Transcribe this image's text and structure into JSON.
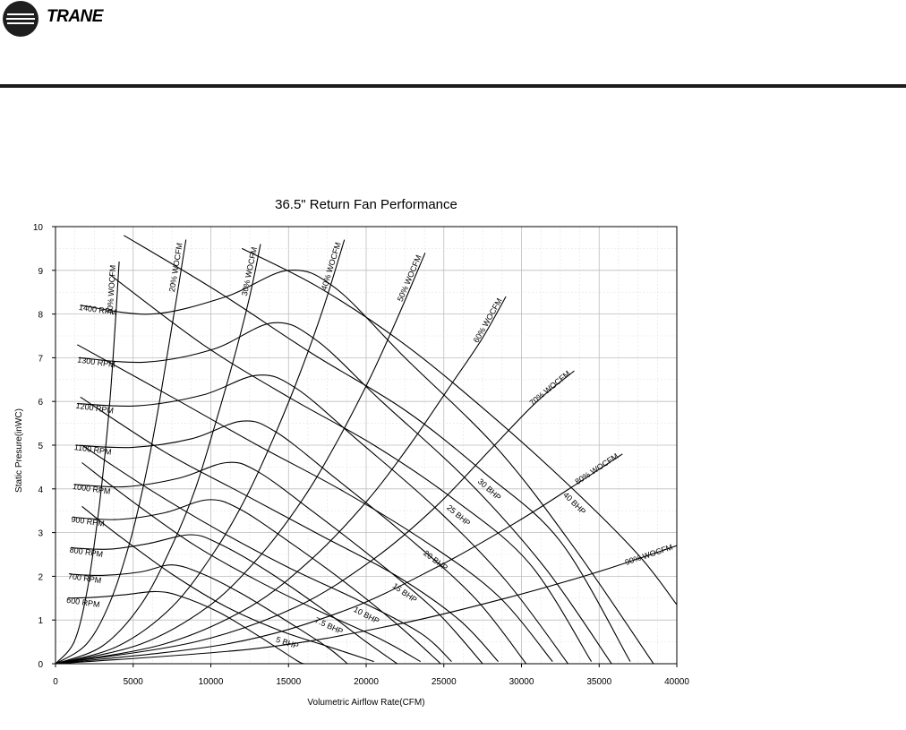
{
  "brand": {
    "name": "TRANE",
    "logo_icon": "trane-logo-icon"
  },
  "chart_data": {
    "type": "line",
    "title": "36.5\" Return Fan Performance",
    "xlabel": "Volumetric Airflow Rate(CFM)",
    "ylabel": "Static Presure(inWC)",
    "xlim": [
      0,
      40000
    ],
    "ylim": [
      0,
      10
    ],
    "xticks": [
      "0",
      "5000",
      "10000",
      "15000",
      "20000",
      "25000",
      "30000",
      "35000",
      "40000"
    ],
    "yticks": [
      "0",
      "1",
      "2",
      "3",
      "4",
      "5",
      "6",
      "7",
      "8",
      "9",
      "10"
    ],
    "grid": true,
    "rpm_curves": [
      {
        "name": "600 RPM",
        "points": [
          [
            800,
            1.5
          ],
          [
            2500,
            1.52
          ],
          [
            4500,
            1.58
          ],
          [
            6500,
            1.65
          ],
          [
            8000,
            1.55
          ],
          [
            10500,
            1.18
          ],
          [
            13000,
            0.65
          ],
          [
            15500,
            0.08
          ],
          [
            16000,
            0
          ]
        ]
      },
      {
        "name": "700 RPM",
        "points": [
          [
            900,
            2.05
          ],
          [
            3000,
            2.02
          ],
          [
            5500,
            2.1
          ],
          [
            7500,
            2.26
          ],
          [
            9500,
            2.05
          ],
          [
            12000,
            1.6
          ],
          [
            15000,
            0.95
          ],
          [
            17500,
            0.38
          ],
          [
            18800,
            0
          ]
        ]
      },
      {
        "name": "800 RPM",
        "points": [
          [
            1000,
            2.65
          ],
          [
            3500,
            2.62
          ],
          [
            6000,
            2.75
          ],
          [
            8700,
            2.95
          ],
          [
            10500,
            2.75
          ],
          [
            13500,
            2.15
          ],
          [
            17000,
            1.3
          ],
          [
            20000,
            0.5
          ],
          [
            22000,
            0
          ]
        ]
      },
      {
        "name": "900 RPM",
        "points": [
          [
            1100,
            3.35
          ],
          [
            4000,
            3.3
          ],
          [
            7000,
            3.45
          ],
          [
            9800,
            3.75
          ],
          [
            11800,
            3.55
          ],
          [
            15000,
            2.8
          ],
          [
            18500,
            1.9
          ],
          [
            22000,
            0.9
          ],
          [
            24800,
            0
          ]
        ]
      },
      {
        "name": "1000 RPM",
        "points": [
          [
            1200,
            4.1
          ],
          [
            4500,
            4.05
          ],
          [
            8000,
            4.25
          ],
          [
            11000,
            4.6
          ],
          [
            13000,
            4.4
          ],
          [
            16500,
            3.5
          ],
          [
            20500,
            2.4
          ],
          [
            24500,
            1.2
          ],
          [
            27500,
            0
          ]
        ]
      },
      {
        "name": "1100 RPM",
        "points": [
          [
            1300,
            5.0
          ],
          [
            5000,
            4.95
          ],
          [
            8800,
            5.15
          ],
          [
            12000,
            5.55
          ],
          [
            14200,
            5.3
          ],
          [
            18000,
            4.25
          ],
          [
            22500,
            2.95
          ],
          [
            27000,
            1.5
          ],
          [
            30300,
            0
          ]
        ]
      },
      {
        "name": "1200 RPM",
        "points": [
          [
            1400,
            5.95
          ],
          [
            5300,
            5.9
          ],
          [
            9500,
            6.15
          ],
          [
            13000,
            6.6
          ],
          [
            15500,
            6.3
          ],
          [
            19500,
            5.1
          ],
          [
            24500,
            3.55
          ],
          [
            29000,
            1.9
          ],
          [
            33000,
            0
          ]
        ]
      },
      {
        "name": "1300 RPM",
        "points": [
          [
            1500,
            7.0
          ],
          [
            5800,
            6.9
          ],
          [
            10200,
            7.2
          ],
          [
            14000,
            7.8
          ],
          [
            16800,
            7.4
          ],
          [
            21000,
            6.0
          ],
          [
            26500,
            4.2
          ],
          [
            31500,
            2.2
          ],
          [
            35800,
            0
          ]
        ]
      },
      {
        "name": "1400 RPM",
        "points": [
          [
            1600,
            8.2
          ],
          [
            6200,
            8.0
          ],
          [
            11000,
            8.4
          ],
          [
            15000,
            9.0
          ],
          [
            18000,
            8.6
          ],
          [
            22500,
            7.0
          ],
          [
            28500,
            4.9
          ],
          [
            33500,
            2.6
          ],
          [
            38500,
            0
          ]
        ]
      }
    ],
    "system_curves": [
      {
        "name": "10% WOCFM",
        "points": [
          [
            0,
            0
          ],
          [
            1200,
            0.5
          ],
          [
            2000,
            1.6
          ],
          [
            2600,
            3.0
          ],
          [
            3100,
            4.5
          ],
          [
            3500,
            6.0
          ],
          [
            3800,
            7.5
          ],
          [
            4100,
            9.2
          ]
        ]
      },
      {
        "name": "20% WOCFM",
        "points": [
          [
            0,
            0
          ],
          [
            2000,
            0.45
          ],
          [
            3500,
            1.4
          ],
          [
            4800,
            2.8
          ],
          [
            5800,
            4.3
          ],
          [
            6600,
            5.8
          ],
          [
            7300,
            7.3
          ],
          [
            7900,
            8.6
          ],
          [
            8400,
            9.7
          ]
        ]
      },
      {
        "name": "30% WOCFM",
        "points": [
          [
            0,
            0
          ],
          [
            3000,
            0.4
          ],
          [
            5500,
            1.35
          ],
          [
            7500,
            2.7
          ],
          [
            9000,
            4.0
          ],
          [
            10300,
            5.5
          ],
          [
            11500,
            7.0
          ],
          [
            12500,
            8.4
          ],
          [
            13200,
            9.6
          ]
        ]
      },
      {
        "name": "40% WOCFM",
        "points": [
          [
            0,
            0
          ],
          [
            4000,
            0.4
          ],
          [
            7500,
            1.3
          ],
          [
            10300,
            2.6
          ],
          [
            12400,
            3.9
          ],
          [
            14200,
            5.3
          ],
          [
            15800,
            6.7
          ],
          [
            17300,
            8.2
          ],
          [
            18600,
            9.7
          ]
        ]
      },
      {
        "name": "50% WOCFM",
        "points": [
          [
            0,
            0
          ],
          [
            5500,
            0.45
          ],
          [
            9800,
            1.3
          ],
          [
            13000,
            2.4
          ],
          [
            15800,
            3.7
          ],
          [
            18000,
            5.0
          ],
          [
            20200,
            6.5
          ],
          [
            22000,
            7.9
          ],
          [
            23800,
            9.4
          ]
        ]
      },
      {
        "name": "60% WOCFM",
        "points": [
          [
            0,
            0
          ],
          [
            7000,
            0.45
          ],
          [
            12500,
            1.3
          ],
          [
            16500,
            2.4
          ],
          [
            20000,
            3.7
          ],
          [
            22800,
            5.0
          ],
          [
            25300,
            6.3
          ],
          [
            27400,
            7.4
          ],
          [
            29000,
            8.4
          ]
        ]
      },
      {
        "name": "70% WOCFM",
        "points": [
          [
            0,
            0
          ],
          [
            9000,
            0.5
          ],
          [
            15500,
            1.3
          ],
          [
            20500,
            2.4
          ],
          [
            24500,
            3.6
          ],
          [
            28000,
            4.9
          ],
          [
            31000,
            6.0
          ],
          [
            33400,
            6.7
          ]
        ]
      },
      {
        "name": "80% WOCFM",
        "points": [
          [
            0,
            0
          ],
          [
            11000,
            0.45
          ],
          [
            18500,
            1.2
          ],
          [
            24500,
            2.2
          ],
          [
            29500,
            3.2
          ],
          [
            33500,
            4.1
          ],
          [
            36500,
            4.8
          ]
        ]
      },
      {
        "name": "90% WOCFM",
        "points": [
          [
            0,
            0
          ],
          [
            13000,
            0.35
          ],
          [
            22000,
            0.9
          ],
          [
            29000,
            1.5
          ],
          [
            34000,
            2.0
          ],
          [
            37500,
            2.4
          ],
          [
            40000,
            2.7
          ]
        ]
      }
    ],
    "bhp_curves": [
      {
        "name": "5 BHP",
        "points": [
          [
            1700,
            3.6
          ],
          [
            4000,
            2.95
          ],
          [
            7500,
            2.05
          ],
          [
            11000,
            1.3
          ],
          [
            14500,
            0.75
          ],
          [
            17500,
            0.4
          ],
          [
            20500,
            0.05
          ]
        ]
      },
      {
        "name": "7.5 BHP",
        "points": [
          [
            1700,
            4.6
          ],
          [
            5000,
            3.7
          ],
          [
            9000,
            2.7
          ],
          [
            13000,
            1.9
          ],
          [
            17000,
            1.2
          ],
          [
            21000,
            0.55
          ],
          [
            23500,
            0.05
          ]
        ]
      },
      {
        "name": "10 BHP",
        "points": [
          [
            1700,
            5.0
          ],
          [
            6000,
            4.0
          ],
          [
            10500,
            3.05
          ],
          [
            15000,
            2.2
          ],
          [
            19500,
            1.45
          ],
          [
            23500,
            0.7
          ],
          [
            25500,
            0.05
          ]
        ]
      },
      {
        "name": "15 BHP",
        "points": [
          [
            1600,
            6.1
          ],
          [
            7000,
            4.85
          ],
          [
            12000,
            3.9
          ],
          [
            17000,
            2.95
          ],
          [
            22000,
            2.0
          ],
          [
            26000,
            1.0
          ],
          [
            28500,
            0.05
          ]
        ]
      },
      {
        "name": "20 BHP",
        "points": [
          [
            1400,
            7.3
          ],
          [
            7500,
            6.1
          ],
          [
            13000,
            5.0
          ],
          [
            18500,
            3.95
          ],
          [
            24000,
            2.75
          ],
          [
            28500,
            1.55
          ],
          [
            32000,
            0.05
          ]
        ]
      },
      {
        "name": "25 BHP",
        "points": [
          [
            3500,
            8.9
          ],
          [
            9500,
            7.3
          ],
          [
            15000,
            6.1
          ],
          [
            20500,
            5.0
          ],
          [
            25500,
            3.8
          ],
          [
            30500,
            2.3
          ],
          [
            34500,
            0.05
          ]
        ]
      },
      {
        "name": "30 BHP",
        "points": [
          [
            4400,
            9.8
          ],
          [
            10500,
            8.5
          ],
          [
            16500,
            7.1
          ],
          [
            22500,
            5.8
          ],
          [
            27500,
            4.4
          ],
          [
            32500,
            2.8
          ],
          [
            37000,
            0.05
          ]
        ]
      },
      {
        "name": "40 BHP",
        "points": [
          [
            12000,
            9.5
          ],
          [
            17000,
            8.6
          ],
          [
            22500,
            7.3
          ],
          [
            28000,
            5.7
          ],
          [
            33000,
            4.1
          ],
          [
            37500,
            2.5
          ],
          [
            40000,
            1.35
          ]
        ]
      }
    ],
    "curve_labels": {
      "rpm": [
        "600 RPM",
        "700 RPM",
        "800 RPM",
        "900 RPM",
        "1000 RPM",
        "1100 RPM",
        "1200 RPM",
        "1300 RPM",
        "1400 RPM"
      ],
      "system": [
        "10% WOCFM",
        "20% WOCFM",
        "30% WOCFM",
        "40% WOCFM",
        "50% WOCFM",
        "60% WOCFM",
        "70% WOCFM",
        "80% WOCFM",
        "90% WOCFM"
      ],
      "bhp": [
        "5 BHP",
        "7.5 BHP",
        "10 BHP",
        "15 BHP",
        "20 BHP",
        "25 BHP",
        "30 BHP",
        "40 BHP"
      ]
    }
  }
}
